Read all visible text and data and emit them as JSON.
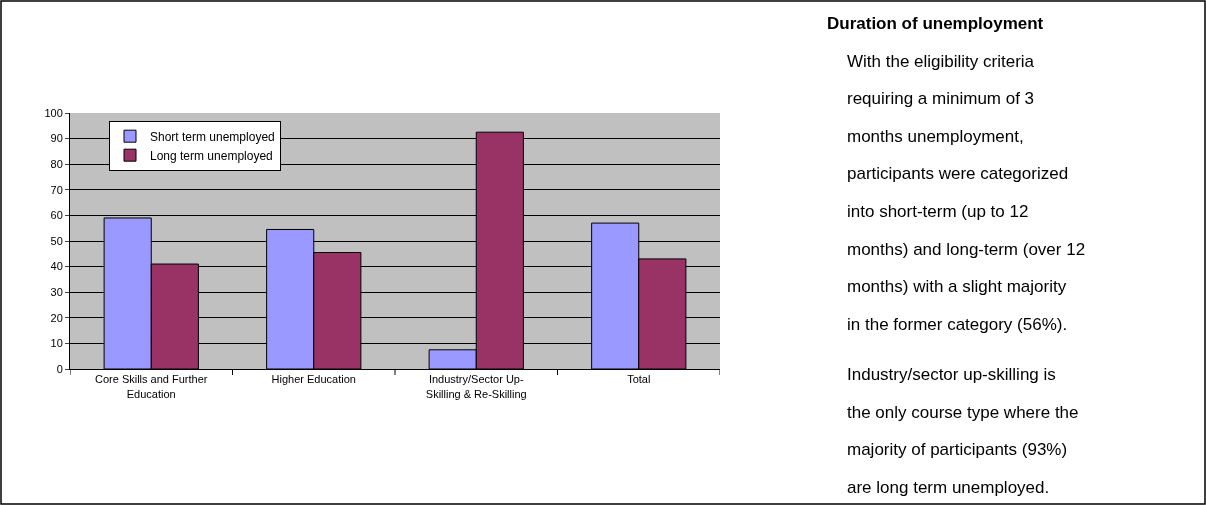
{
  "chart_data": {
    "type": "bar",
    "title": "Duration of unemployment",
    "categories": [
      "Core Skills and Further Education",
      "Higher Education",
      "Industry/Sector Up-Skilling & Re-Skilling",
      "Total"
    ],
    "series": [
      {
        "name": "Short term unemployed",
        "color": "#9999ff",
        "values": [
          59,
          54.5,
          7.5,
          57
        ]
      },
      {
        "name": "Long term unemployed",
        "color": "#993366",
        "values": [
          41,
          45.5,
          92.5,
          43
        ]
      }
    ],
    "ylim": [
      0,
      100
    ],
    "yticks": [
      0,
      10,
      20,
      30,
      40,
      50,
      60,
      70,
      80,
      90,
      100
    ],
    "grid": "y",
    "legend": "top left",
    "annotations": [
      "With the eligibility criteria requiring a minimum of 3 months unemployment, participants were categorized into short-term (up to 12 months) and long-term (over 12 months) with a slight majority in the former category (56%).",
      "Industry/sector up-skilling is the only course type where the majority of participants (93%) are long term unemployed."
    ]
  }
}
